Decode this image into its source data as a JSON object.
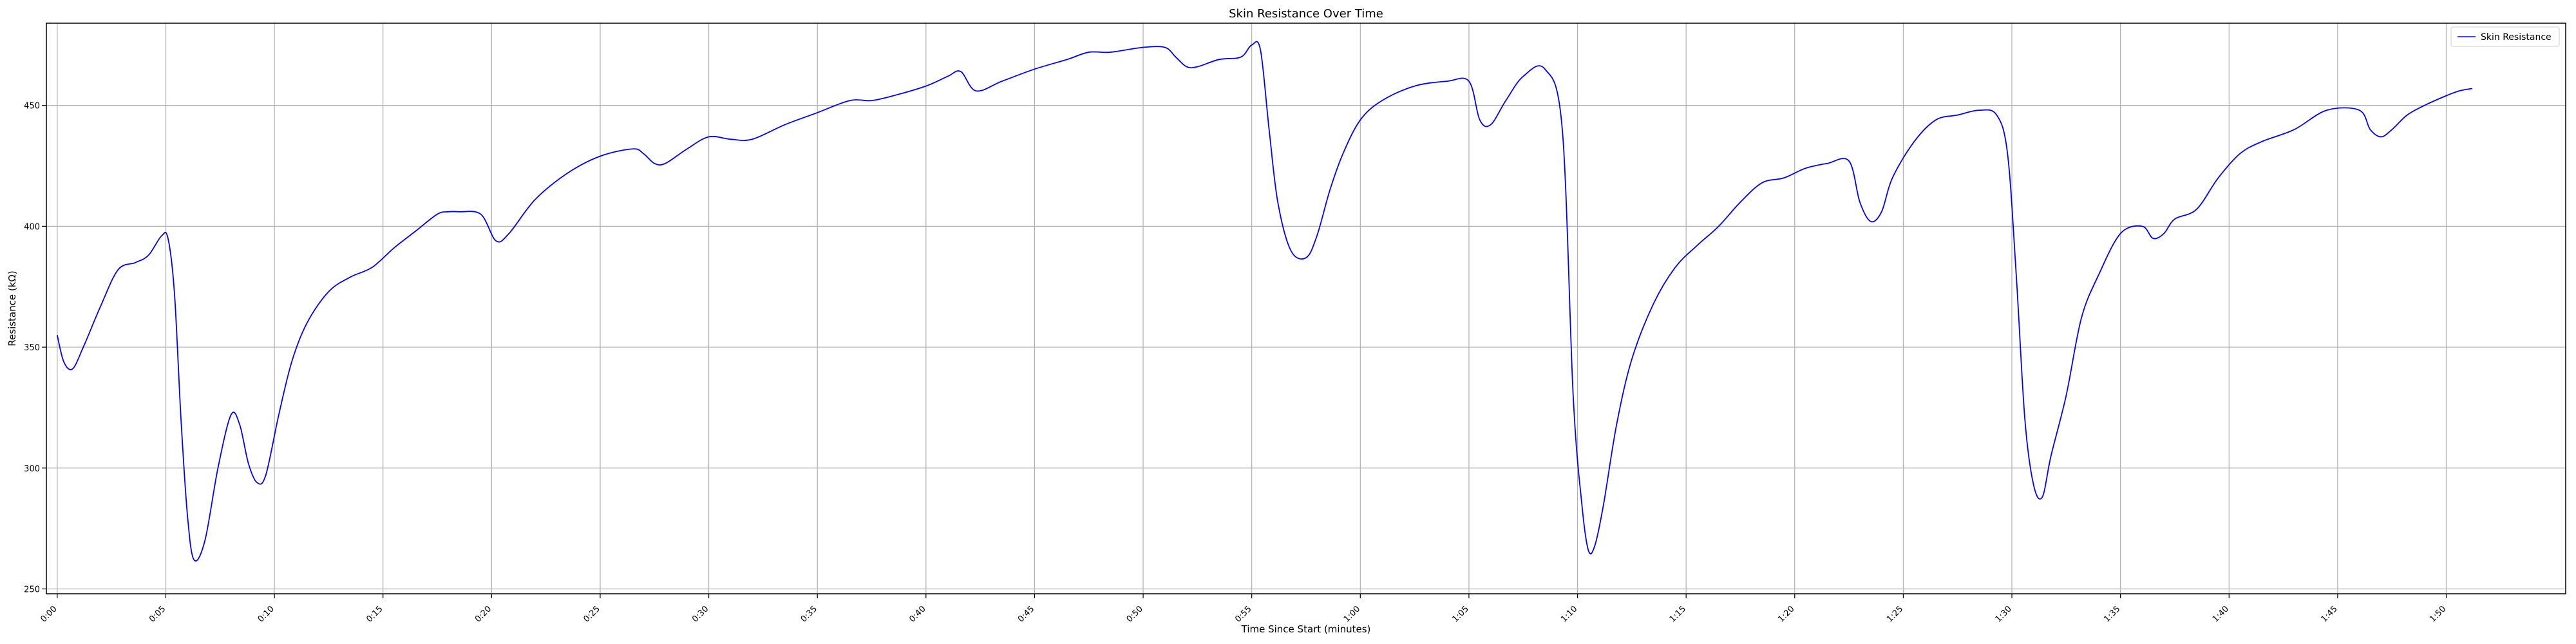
{
  "chart_data": {
    "type": "line",
    "title": "Skin Resistance Over Time",
    "xlabel": "Time Since Start (minutes)",
    "ylabel": "Resistance (kΩ)",
    "xlim": [
      -0.5,
      115.5
    ],
    "ylim": [
      248,
      484
    ],
    "grid": true,
    "legend_position": "top-right",
    "x_ticks": [
      0,
      5,
      10,
      15,
      20,
      25,
      30,
      35,
      40,
      45,
      50,
      55,
      60,
      65,
      70,
      75,
      80,
      85,
      90,
      95,
      100,
      105,
      110
    ],
    "x_tick_labels": [
      "0:00",
      "0:05",
      "0:10",
      "0:15",
      "0:20",
      "0:25",
      "0:30",
      "0:35",
      "0:40",
      "0:45",
      "0:50",
      "0:55",
      "1:00",
      "1:05",
      "1:10",
      "1:15",
      "1:20",
      "1:25",
      "1:30",
      "1:35",
      "1:40",
      "1:45",
      "1:50"
    ],
    "y_ticks": [
      250,
      300,
      350,
      400,
      450
    ],
    "y_tick_labels": [
      "250",
      "300",
      "350",
      "400",
      "450"
    ],
    "series": [
      {
        "name": "Skin Resistance",
        "color": "#0000ff",
        "x": [
          0.0,
          0.3,
          0.7,
          1.2,
          2.0,
          2.8,
          3.6,
          4.2,
          4.8,
          5.1,
          5.4,
          5.7,
          6.0,
          6.3,
          6.8,
          7.4,
          8.0,
          8.4,
          8.8,
          9.2,
          9.6,
          10.2,
          10.8,
          11.5,
          12.5,
          13.5,
          14.5,
          15.5,
          16.5,
          17.5,
          18.0,
          18.5,
          19.5,
          20.2,
          20.8,
          22.0,
          23.5,
          25.0,
          26.5,
          27.0,
          27.5,
          28.0,
          29.0,
          30.0,
          31.0,
          32.0,
          33.5,
          35.0,
          36.5,
          37.5,
          38.5,
          40.0,
          41.0,
          41.6,
          42.3,
          43.5,
          45.0,
          46.5,
          47.5,
          48.5,
          50.0,
          51.0,
          51.5,
          52.0,
          52.5,
          53.5,
          54.5,
          55.0,
          55.4,
          55.8,
          56.2,
          56.8,
          57.5,
          58.0,
          58.6,
          59.2,
          60.0,
          61.0,
          62.5,
          64.0,
          65.0,
          65.5,
          66.0,
          66.7,
          67.5,
          68.5,
          69.3,
          69.8,
          70.2,
          70.5,
          70.8,
          71.2,
          71.8,
          72.5,
          73.5,
          74.5,
          75.5,
          76.5,
          77.5,
          78.5,
          79.5,
          80.5,
          81.5,
          82.5,
          83.0,
          83.5,
          84.0,
          84.5,
          85.5,
          86.5,
          87.5,
          88.5,
          89.3,
          89.8,
          90.2,
          90.6,
          91.0,
          91.4,
          91.8,
          92.5,
          93.2,
          94.0,
          95.0,
          96.0,
          96.5,
          97.0,
          97.5,
          98.5,
          99.5,
          100.5,
          101.5,
          103.0,
          104.5,
          106.0,
          106.5,
          107.0,
          107.5,
          108.2,
          109.0,
          110.0,
          110.6,
          111.2
        ],
        "y": [
          355,
          344,
          341,
          350,
          367,
          382,
          385,
          388,
          396,
          395,
          372,
          320,
          280,
          262,
          270,
          300,
          322,
          318,
          302,
          294,
          297,
          322,
          344,
          360,
          373,
          379,
          383,
          391,
          398,
          405,
          406,
          406,
          405,
          394,
          397,
          411,
          422,
          429,
          432,
          430,
          426,
          426,
          432,
          437,
          436,
          436,
          442,
          447,
          452,
          452,
          454,
          458,
          462,
          464,
          456,
          460,
          465,
          469,
          472,
          472,
          474,
          474,
          470,
          466,
          466,
          469,
          470,
          475,
          473,
          440,
          410,
          390,
          387,
          396,
          415,
          430,
          444,
          452,
          458,
          460,
          460,
          444,
          442,
          452,
          462,
          465,
          440,
          330,
          285,
          266,
          268,
          285,
          318,
          345,
          368,
          383,
          392,
          400,
          410,
          418,
          420,
          424,
          426,
          427,
          410,
          402,
          406,
          420,
          435,
          444,
          446,
          448,
          446,
          430,
          380,
          320,
          293,
          288,
          305,
          330,
          362,
          380,
          397,
          400,
          395,
          397,
          403,
          407,
          420,
          430,
          435,
          440,
          448,
          448,
          440,
          437,
          440,
          446,
          450,
          454,
          456,
          457
        ]
      }
    ]
  }
}
